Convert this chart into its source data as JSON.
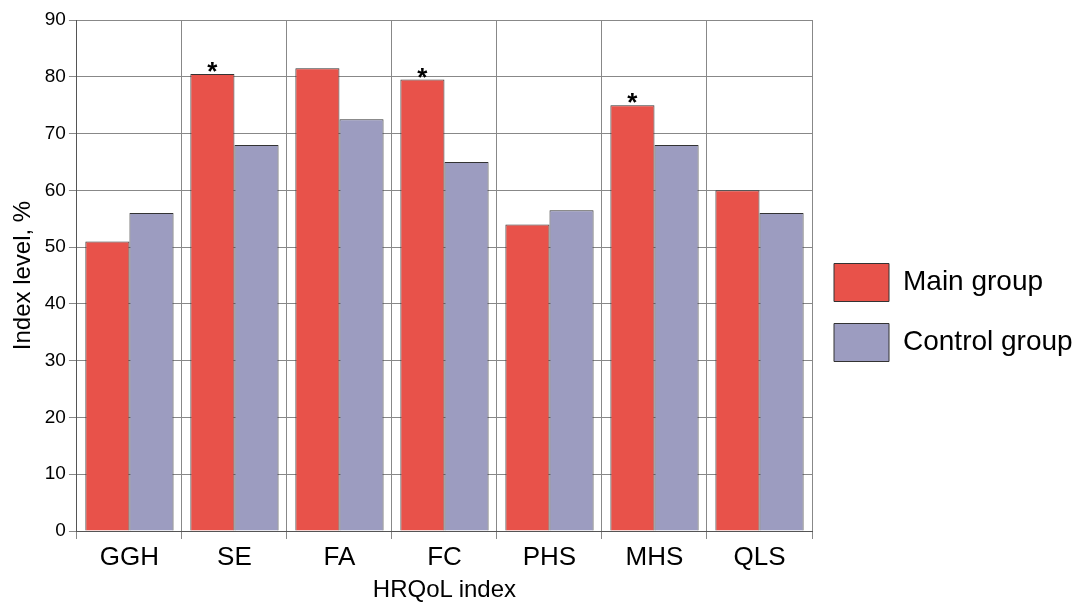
{
  "chart_data": {
    "type": "bar",
    "xlabel": "HRQoL index",
    "ylabel": "Index level, %",
    "categories": [
      "GGH",
      "SE",
      "FA",
      "FC",
      "PHS",
      "MHS",
      "QLS"
    ],
    "series": [
      {
        "name": "Main group",
        "color": "#e8524a",
        "values": [
          51,
          80.5,
          81.5,
          79.5,
          54,
          75,
          60
        ]
      },
      {
        "name": "Control group",
        "color": "#9c9cc0",
        "values": [
          56,
          68,
          72.5,
          65,
          56.5,
          68,
          56
        ]
      }
    ],
    "ylim": [
      0,
      90
    ],
    "yticks": [
      0,
      10,
      20,
      30,
      40,
      50,
      60,
      70,
      80,
      90
    ],
    "grid": true,
    "legend": "right",
    "annotations": [
      {
        "text": "*",
        "x": "SE",
        "y": 80.5
      },
      {
        "text": "*",
        "x": "FC",
        "y": 79.5
      },
      {
        "text": "*",
        "x": "MHS",
        "y": 75
      }
    ]
  }
}
